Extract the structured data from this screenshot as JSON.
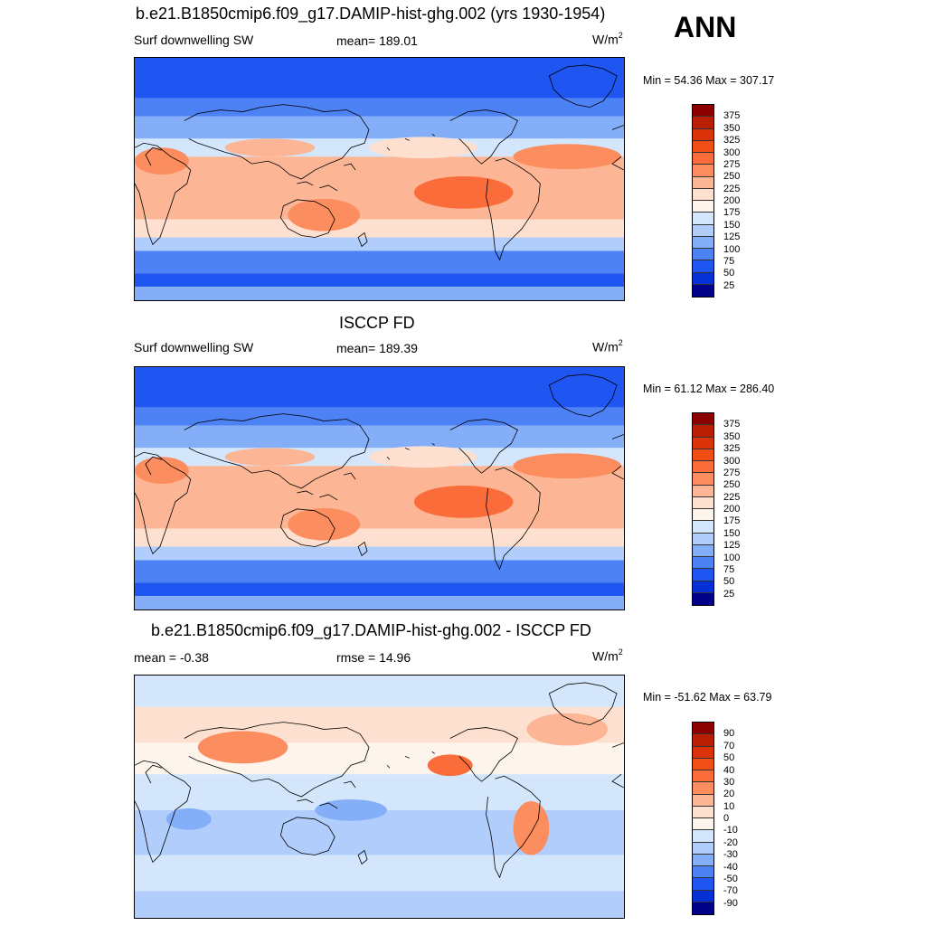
{
  "season": "ANN",
  "panels": [
    {
      "title": "b.e21.B1850cmip6.f09_g17.DAMIP-hist-ghg.002 (yrs 1930-1954)",
      "left_label": "Surf downwelling SW",
      "center_label": "mean= 189.01",
      "units_base": "W/m",
      "units_exp": "2",
      "minmax": "Min =  54.36 Max = 307.17",
      "colorbar_ticks": [
        "375",
        "350",
        "325",
        "300",
        "275",
        "250",
        "225",
        "200",
        "175",
        "150",
        "125",
        "100",
        "75",
        "50",
        "25"
      ],
      "colorbar_colors": [
        "#8b0000",
        "#b81f04",
        "#d93307",
        "#f04e14",
        "#fa6c3a",
        "#fc8d5e",
        "#fdb695",
        "#fde0cf",
        "#fdf4ec",
        "#d3e6fb",
        "#b1cdfb",
        "#84aff8",
        "#4d82f5",
        "#1f55f0",
        "#0530d5",
        "#000088"
      ],
      "map_type": "absolute"
    },
    {
      "title": "ISCCP FD",
      "left_label": "Surf downwelling SW",
      "center_label": "mean= 189.39",
      "units_base": "W/m",
      "units_exp": "2",
      "minmax": "Min =  61.12 Max = 286.40",
      "colorbar_ticks": [
        "375",
        "350",
        "325",
        "300",
        "275",
        "250",
        "225",
        "200",
        "175",
        "150",
        "125",
        "100",
        "75",
        "50",
        "25"
      ],
      "colorbar_colors": [
        "#8b0000",
        "#b81f04",
        "#d93307",
        "#f04e14",
        "#fa6c3a",
        "#fc8d5e",
        "#fdb695",
        "#fde0cf",
        "#fdf4ec",
        "#d3e6fb",
        "#b1cdfb",
        "#84aff8",
        "#4d82f5",
        "#1f55f0",
        "#0530d5",
        "#000088"
      ],
      "map_type": "absolute"
    },
    {
      "title": "b.e21.B1850cmip6.f09_g17.DAMIP-hist-ghg.002 - ISCCP FD",
      "left_label": "mean =  -0.38",
      "center_label": "rmse =  14.96",
      "units_base": "W/m",
      "units_exp": "2",
      "minmax": "Min = -51.62 Max =  63.79",
      "colorbar_ticks": [
        "90",
        "70",
        "50",
        "40",
        "30",
        "20",
        "10",
        "0",
        "-10",
        "-20",
        "-30",
        "-40",
        "-50",
        "-70",
        "-90"
      ],
      "colorbar_colors": [
        "#8b0000",
        "#b81f04",
        "#d93307",
        "#f04e14",
        "#fa6c3a",
        "#fc8d5e",
        "#fdb695",
        "#fde0cf",
        "#fdf4ec",
        "#d3e6fb",
        "#b1cdfb",
        "#84aff8",
        "#4d82f5",
        "#1f55f0",
        "#0530d5",
        "#000088"
      ],
      "map_type": "difference"
    }
  ]
}
